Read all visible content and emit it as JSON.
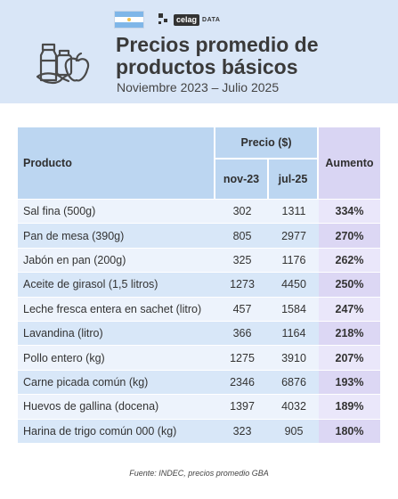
{
  "header": {
    "logo_name": "celag",
    "logo_tag": "DATA",
    "title_line1": "Precios promedio de",
    "title_line2": "productos básicos",
    "subtitle": "Noviembre 2023 – Julio 2025"
  },
  "table": {
    "col_product": "Producto",
    "col_price_group": "Precio  ($)",
    "col_nov": "nov-23",
    "col_jul": "jul-25",
    "col_increase": "Aumento",
    "rows": [
      {
        "product": "Sal fina (500g)",
        "nov": "302",
        "jul": "1311",
        "increase": "334%"
      },
      {
        "product": "Pan de mesa (390g)",
        "nov": "805",
        "jul": "2977",
        "increase": "270%"
      },
      {
        "product": "Jabón en pan (200g)",
        "nov": "325",
        "jul": "1176",
        "increase": "262%"
      },
      {
        "product": "Aceite de girasol (1,5 litros)",
        "nov": "1273",
        "jul": "4450",
        "increase": "250%"
      },
      {
        "product": "Leche fresca entera en sachet (litro)",
        "nov": "457",
        "jul": "1584",
        "increase": "247%"
      },
      {
        "product": "Lavandina (litro)",
        "nov": "366",
        "jul": "1164",
        "increase": "218%"
      },
      {
        "product": "Pollo entero (kg)",
        "nov": "1275",
        "jul": "3910",
        "increase": "207%"
      },
      {
        "product": "Carne picada común (kg)",
        "nov": "2346",
        "jul": "6876",
        "increase": "193%"
      },
      {
        "product": "Huevos de gallina (docena)",
        "nov": "1397",
        "jul": "4032",
        "increase": "189%"
      },
      {
        "product": "Harina de trigo común 000 (kg)",
        "nov": "323",
        "jul": "905",
        "increase": "180%"
      }
    ]
  },
  "footer": {
    "source": "Fuente: INDEC, precios promedio GBA"
  },
  "colors": {
    "header_bg": "#d9e6f7",
    "table_header": "#bcd6f1",
    "increase_header": "#d9d5f3"
  },
  "icons": [
    "argentina-flag-icon",
    "celag-logo-icon",
    "grocery-basket-icon"
  ]
}
